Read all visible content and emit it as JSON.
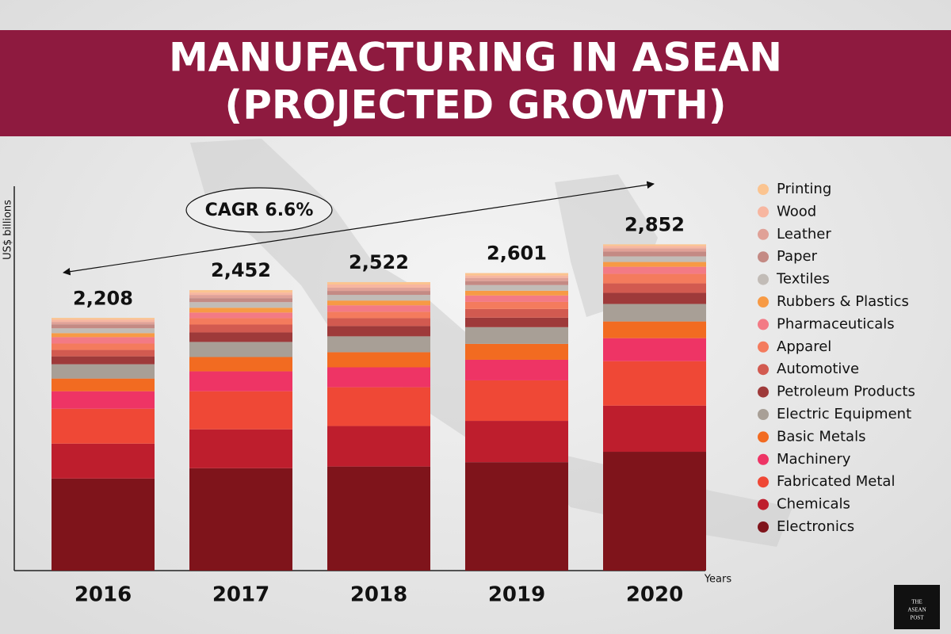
{
  "chart_data": {
    "type": "stacked_bar",
    "title_lines": [
      "MANUFACTURING IN ASEAN",
      "(PROJECTED GROWTH)"
    ],
    "y_label": "US$ billions",
    "x_label": "Years",
    "annotation": "CAGR 6.6%",
    "logo_lines": [
      "THE",
      "ASEAN",
      "POST"
    ],
    "categories": [
      "2016",
      "2017",
      "2018",
      "2019",
      "2020"
    ],
    "totals": [
      2208,
      2452,
      2522,
      2601,
      2852
    ],
    "total_labels": [
      "2,208",
      "2,452",
      "2,522",
      "2,601",
      "2,852"
    ],
    "ylim": [
      0,
      3360
    ],
    "series": [
      {
        "name": "Electronics",
        "color": "#7f141b",
        "values": [
          805,
          895,
          910,
          948,
          1039
        ]
      },
      {
        "name": "Chemicals",
        "color": "#be1e2d",
        "values": [
          305,
          340,
          354,
          361,
          403
        ]
      },
      {
        "name": "Fabricated Metal",
        "color": "#ef4836",
        "values": [
          305,
          333,
          339,
          354,
          389
        ]
      },
      {
        "name": "Machinery",
        "color": "#ee3465",
        "values": [
          153,
          174,
          174,
          180,
          201
        ]
      },
      {
        "name": "Basic Metals",
        "color": "#f26b21",
        "values": [
          111,
          125,
          132,
          139,
          146
        ]
      },
      {
        "name": "Electric Equipment",
        "color": "#a89f96",
        "values": [
          125,
          132,
          139,
          146,
          153
        ]
      },
      {
        "name": "Petroleum Products",
        "color": "#9e3a3a",
        "values": [
          69,
          83,
          90,
          83,
          97
        ]
      },
      {
        "name": "Automotive",
        "color": "#d25a50",
        "values": [
          56,
          69,
          69,
          76,
          83
        ]
      },
      {
        "name": "Apparel",
        "color": "#f47b5d",
        "values": [
          56,
          56,
          56,
          62,
          83
        ]
      },
      {
        "name": "Pharmaceuticals",
        "color": "#f37a85",
        "values": [
          56,
          49,
          56,
          56,
          62
        ]
      },
      {
        "name": "Rubbers & Plastics",
        "color": "#f79a45",
        "values": [
          35,
          42,
          42,
          42,
          42
        ]
      },
      {
        "name": "Textiles",
        "color": "#c2bcb7",
        "values": [
          42,
          49,
          49,
          49,
          49
        ]
      },
      {
        "name": "Paper",
        "color": "#c48a84",
        "values": [
          35,
          35,
          35,
          35,
          42
        ]
      },
      {
        "name": "Leather",
        "color": "#e0a197",
        "values": [
          21,
          28,
          28,
          28,
          28
        ]
      },
      {
        "name": "Wood",
        "color": "#f7b6a0",
        "values": [
          21,
          21,
          28,
          21,
          21
        ]
      },
      {
        "name": "Printing",
        "color": "#fbc490",
        "values": [
          14,
          21,
          21,
          21,
          14
        ]
      }
    ]
  }
}
